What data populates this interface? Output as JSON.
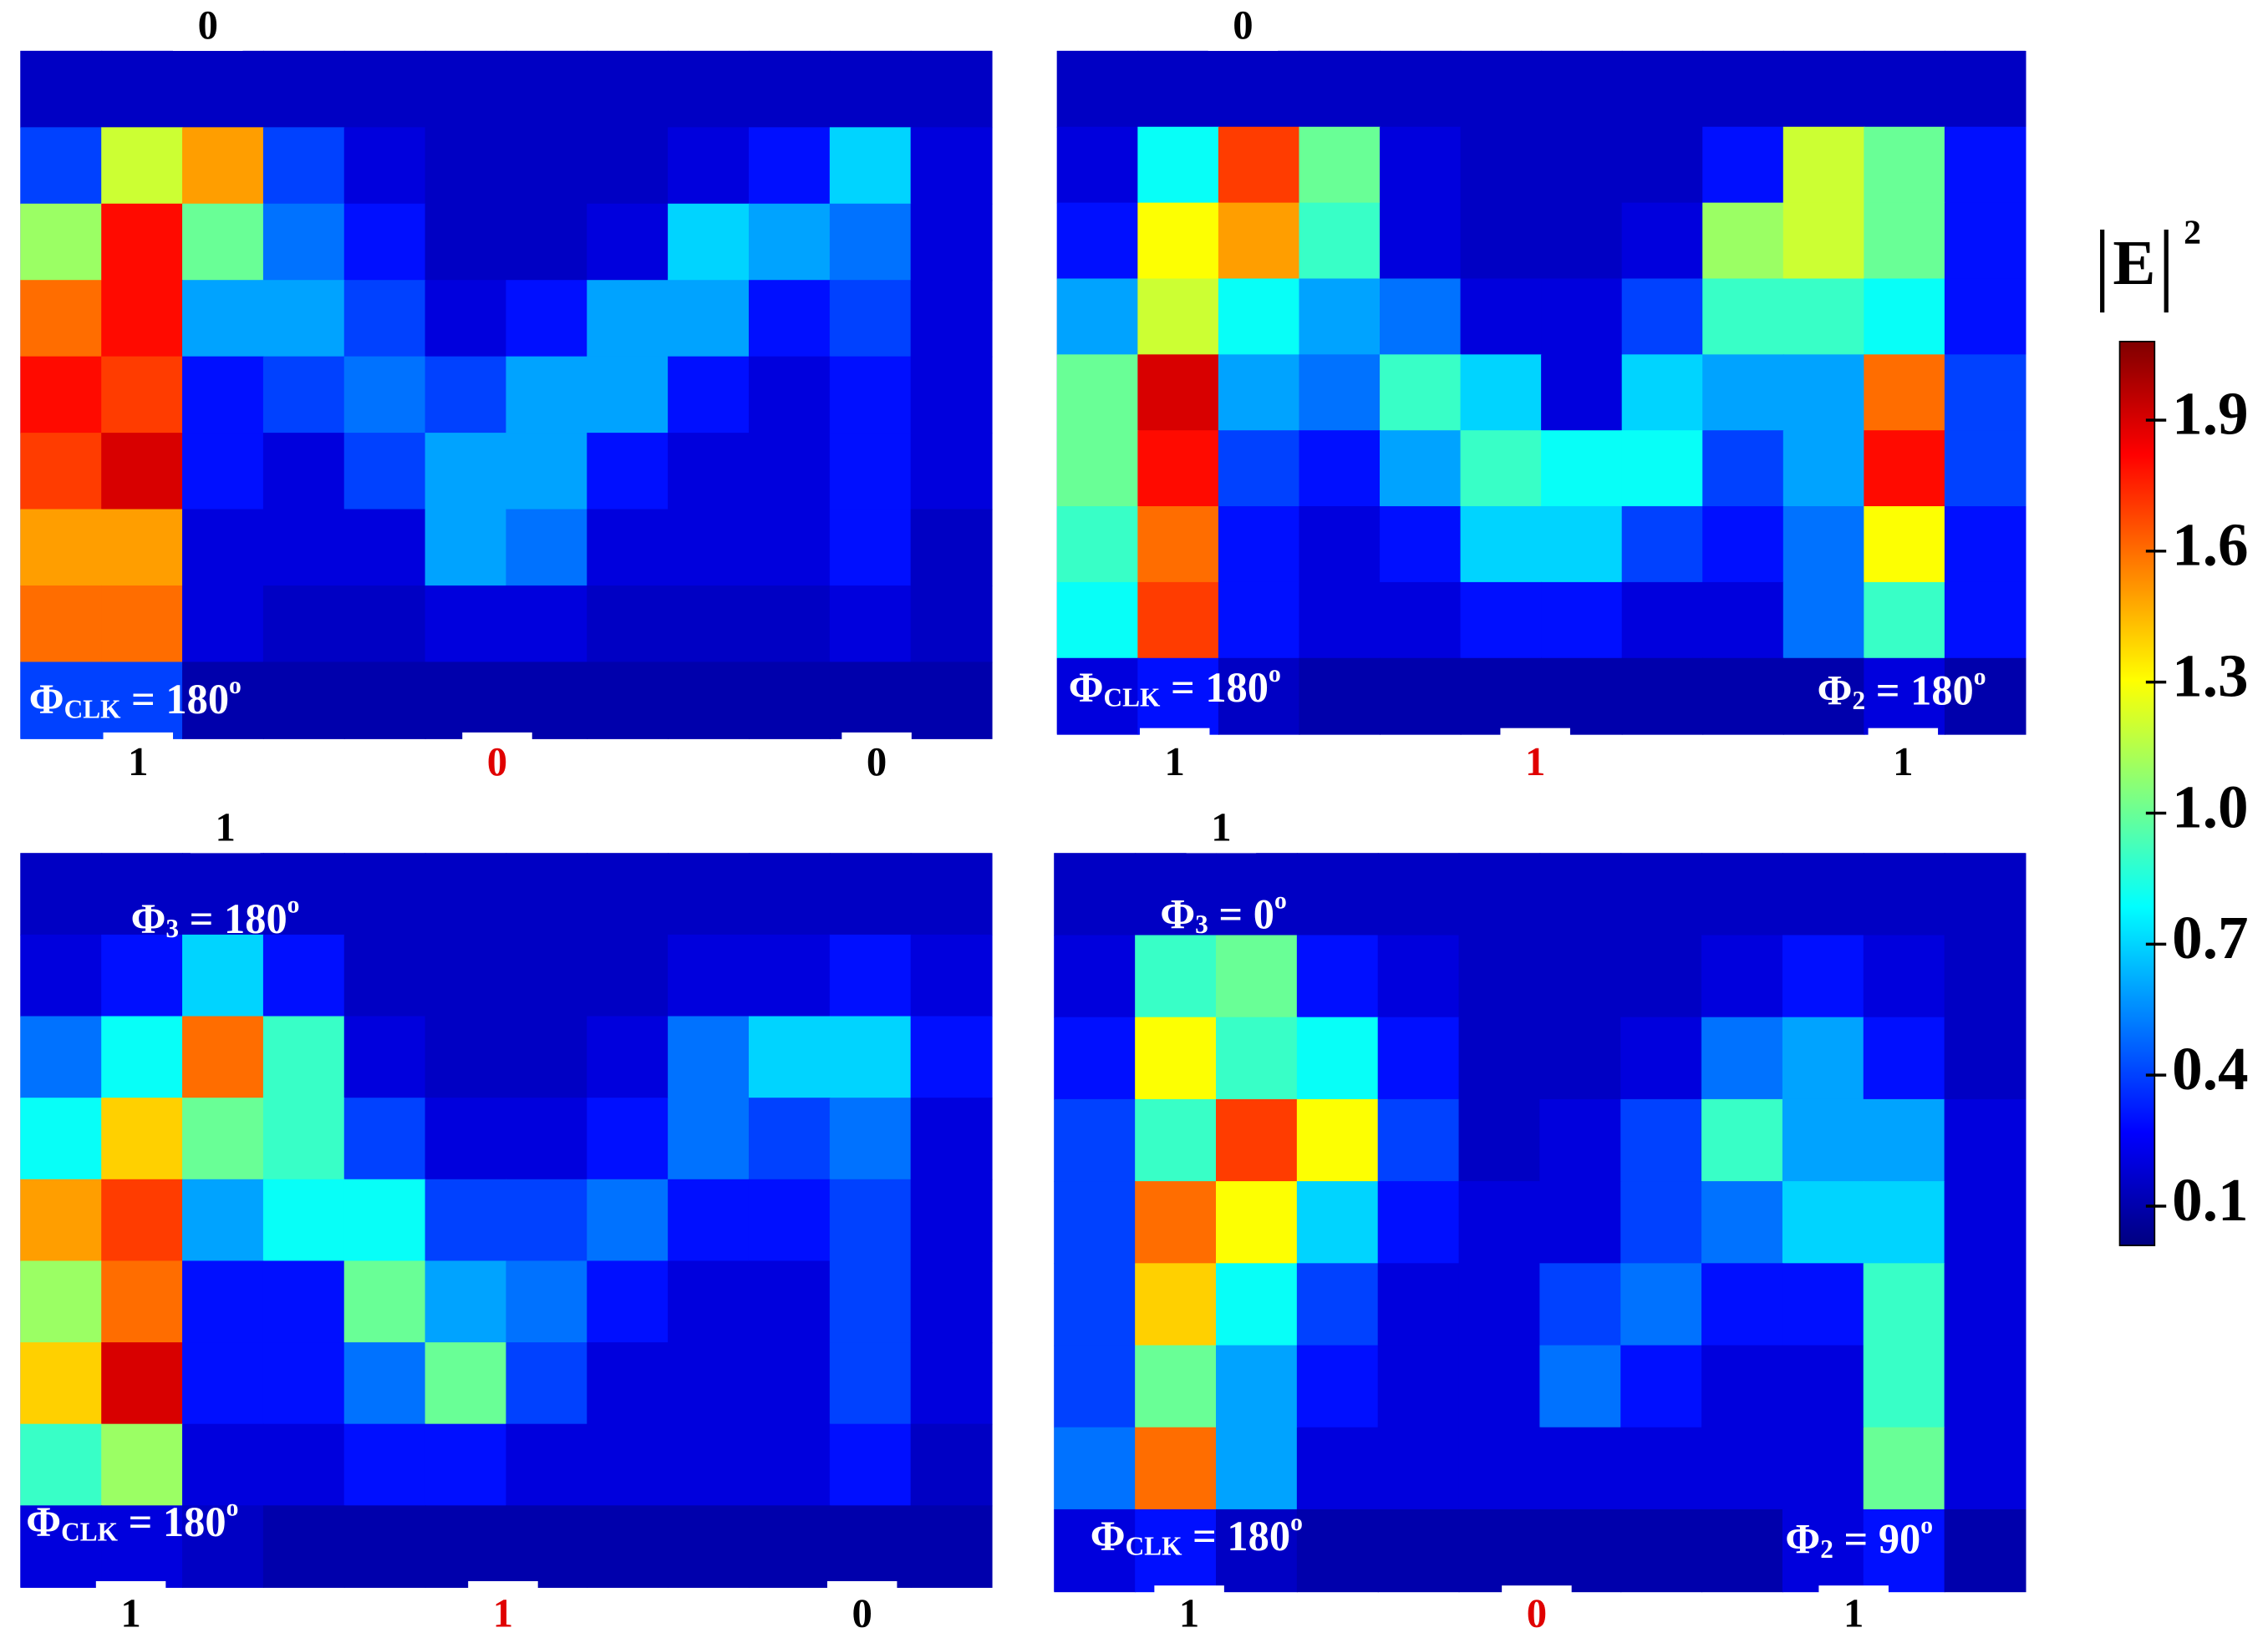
{
  "chart_data": [
    {
      "type": "heatmap",
      "top_labels": [
        "0"
      ],
      "bottom_labels": [
        {
          "text": "1",
          "color": "#000000"
        },
        {
          "text": "0",
          "color": "#e00000"
        },
        {
          "text": "0",
          "color": "#000000"
        }
      ],
      "annotations": [
        {
          "symbol": "Φ",
          "sub": "CLK",
          "text": " = 180",
          "sup": "o"
        }
      ],
      "values": [
        [
          0.15,
          0.15,
          0.15,
          0.15,
          0.15,
          0.15,
          0.15,
          0.15,
          0.15,
          0.15,
          0.15,
          0.15
        ],
        [
          0.4,
          1.2,
          1.5,
          0.4,
          0.2,
          0.15,
          0.15,
          0.15,
          0.2,
          0.3,
          0.7,
          0.2
        ],
        [
          1.1,
          1.8,
          1.0,
          0.5,
          0.3,
          0.15,
          0.15,
          0.2,
          0.7,
          0.6,
          0.5,
          0.2
        ],
        [
          1.6,
          1.8,
          0.6,
          0.6,
          0.4,
          0.2,
          0.3,
          0.6,
          0.6,
          0.3,
          0.4,
          0.2
        ],
        [
          1.8,
          1.7,
          0.3,
          0.4,
          0.5,
          0.4,
          0.6,
          0.6,
          0.3,
          0.2,
          0.3,
          0.2
        ],
        [
          1.7,
          1.9,
          0.3,
          0.2,
          0.4,
          0.6,
          0.6,
          0.3,
          0.2,
          0.2,
          0.3,
          0.2
        ],
        [
          1.5,
          1.5,
          0.2,
          0.2,
          0.2,
          0.6,
          0.5,
          0.2,
          0.2,
          0.2,
          0.3,
          0.15
        ],
        [
          1.6,
          1.6,
          0.2,
          0.15,
          0.15,
          0.2,
          0.2,
          0.15,
          0.15,
          0.15,
          0.2,
          0.15
        ],
        [
          0.4,
          0.4,
          0.1,
          0.1,
          0.1,
          0.1,
          0.1,
          0.1,
          0.1,
          0.1,
          0.1,
          0.1
        ]
      ]
    },
    {
      "type": "heatmap",
      "top_labels": [
        "0"
      ],
      "bottom_labels": [
        {
          "text": "1",
          "color": "#000000"
        },
        {
          "text": "1",
          "color": "#e00000"
        },
        {
          "text": "1",
          "color": "#000000"
        }
      ],
      "annotations": [
        {
          "symbol": "Φ",
          "sub": "CLK",
          "text": " = 180",
          "sup": "o"
        },
        {
          "symbol": "Φ",
          "sub": "2",
          "text": " = 180",
          "sup": "o"
        }
      ],
      "values": [
        [
          0.15,
          0.15,
          0.15,
          0.15,
          0.15,
          0.15,
          0.15,
          0.15,
          0.15,
          0.15,
          0.15,
          0.15
        ],
        [
          0.2,
          0.8,
          1.7,
          1.0,
          0.2,
          0.15,
          0.15,
          0.15,
          0.3,
          1.2,
          1.0,
          0.3
        ],
        [
          0.3,
          1.3,
          1.5,
          0.9,
          0.2,
          0.15,
          0.15,
          0.2,
          1.1,
          1.2,
          1.0,
          0.3
        ],
        [
          0.6,
          1.2,
          0.8,
          0.6,
          0.5,
          0.2,
          0.2,
          0.4,
          0.9,
          0.9,
          0.8,
          0.3
        ],
        [
          1.0,
          1.9,
          0.6,
          0.5,
          0.9,
          0.7,
          0.2,
          0.7,
          0.6,
          0.6,
          1.6,
          0.4
        ],
        [
          1.0,
          1.8,
          0.4,
          0.3,
          0.6,
          0.9,
          0.8,
          0.8,
          0.4,
          0.6,
          1.8,
          0.4
        ],
        [
          0.9,
          1.6,
          0.3,
          0.2,
          0.3,
          0.7,
          0.7,
          0.4,
          0.3,
          0.5,
          1.3,
          0.3
        ],
        [
          0.8,
          1.7,
          0.3,
          0.2,
          0.2,
          0.3,
          0.3,
          0.2,
          0.2,
          0.5,
          0.9,
          0.3
        ],
        [
          0.2,
          0.3,
          0.15,
          0.1,
          0.1,
          0.1,
          0.1,
          0.1,
          0.1,
          0.1,
          0.2,
          0.1
        ]
      ]
    },
    {
      "type": "heatmap",
      "top_labels": [
        "1"
      ],
      "bottom_labels": [
        {
          "text": "1",
          "color": "#000000"
        },
        {
          "text": "1",
          "color": "#e00000"
        },
        {
          "text": "0",
          "color": "#000000"
        }
      ],
      "annotations": [
        {
          "symbol": "Φ",
          "sub": "3",
          "text": " = 180",
          "sup": "o"
        },
        {
          "symbol": "Φ",
          "sub": "CLK",
          "text": " = 180",
          "sup": "o"
        }
      ],
      "values": [
        [
          0.15,
          0.15,
          0.15,
          0.15,
          0.15,
          0.15,
          0.15,
          0.15,
          0.15,
          0.15,
          0.15,
          0.15
        ],
        [
          0.2,
          0.3,
          0.7,
          0.3,
          0.15,
          0.15,
          0.15,
          0.15,
          0.2,
          0.2,
          0.3,
          0.2
        ],
        [
          0.5,
          0.8,
          1.6,
          0.9,
          0.2,
          0.15,
          0.15,
          0.2,
          0.5,
          0.7,
          0.7,
          0.3
        ],
        [
          0.8,
          1.4,
          1.0,
          0.9,
          0.4,
          0.2,
          0.2,
          0.3,
          0.5,
          0.4,
          0.5,
          0.2
        ],
        [
          1.5,
          1.7,
          0.6,
          0.8,
          0.8,
          0.4,
          0.4,
          0.5,
          0.3,
          0.3,
          0.4,
          0.2
        ],
        [
          1.1,
          1.6,
          0.3,
          0.3,
          1.0,
          0.6,
          0.5,
          0.3,
          0.2,
          0.2,
          0.4,
          0.2
        ],
        [
          1.4,
          1.9,
          0.3,
          0.3,
          0.5,
          1.0,
          0.4,
          0.2,
          0.2,
          0.2,
          0.4,
          0.2
        ],
        [
          0.9,
          1.1,
          0.2,
          0.2,
          0.3,
          0.3,
          0.2,
          0.2,
          0.2,
          0.2,
          0.3,
          0.15
        ],
        [
          0.2,
          0.2,
          0.15,
          0.1,
          0.1,
          0.1,
          0.1,
          0.1,
          0.1,
          0.1,
          0.1,
          0.1
        ]
      ]
    },
    {
      "type": "heatmap",
      "top_labels": [
        "1"
      ],
      "bottom_labels": [
        {
          "text": "1",
          "color": "#000000"
        },
        {
          "text": "0",
          "color": "#e00000"
        },
        {
          "text": "1",
          "color": "#000000"
        }
      ],
      "annotations": [
        {
          "symbol": "Φ",
          "sub": "3",
          "text": " = 0",
          "sup": "o"
        },
        {
          "symbol": "Φ",
          "sub": "CLK",
          "text": " = 180",
          "sup": "o"
        },
        {
          "symbol": "Φ",
          "sub": "2",
          "text": " = 90",
          "sup": "o"
        }
      ],
      "values": [
        [
          0.15,
          0.15,
          0.15,
          0.15,
          0.15,
          0.15,
          0.15,
          0.15,
          0.15,
          0.15,
          0.15,
          0.15
        ],
        [
          0.2,
          0.9,
          1.0,
          0.3,
          0.2,
          0.15,
          0.15,
          0.15,
          0.2,
          0.3,
          0.2,
          0.15
        ],
        [
          0.3,
          1.3,
          0.9,
          0.8,
          0.3,
          0.15,
          0.15,
          0.2,
          0.5,
          0.6,
          0.3,
          0.15
        ],
        [
          0.4,
          0.9,
          1.7,
          1.3,
          0.4,
          0.15,
          0.2,
          0.4,
          0.9,
          0.6,
          0.6,
          0.2
        ],
        [
          0.4,
          1.6,
          1.3,
          0.7,
          0.3,
          0.2,
          0.2,
          0.4,
          0.5,
          0.7,
          0.7,
          0.2
        ],
        [
          0.4,
          1.4,
          0.8,
          0.4,
          0.2,
          0.2,
          0.4,
          0.5,
          0.3,
          0.3,
          0.9,
          0.2
        ],
        [
          0.4,
          1.0,
          0.6,
          0.3,
          0.2,
          0.2,
          0.5,
          0.3,
          0.2,
          0.2,
          0.9,
          0.2
        ],
        [
          0.5,
          1.6,
          0.6,
          0.2,
          0.2,
          0.2,
          0.2,
          0.2,
          0.2,
          0.2,
          1.0,
          0.2
        ],
        [
          0.2,
          0.3,
          0.15,
          0.1,
          0.1,
          0.1,
          0.1,
          0.1,
          0.1,
          0.2,
          0.3,
          0.1
        ]
      ]
    }
  ],
  "colorbar": {
    "label": {
      "text": "E",
      "sup": "2"
    },
    "colormap": "jet",
    "clim": [
      0.01,
      2.08
    ],
    "ticks": [
      0.1,
      0.4,
      0.7,
      {
        "value": 1,
        "label": "1.0"
      },
      1.3,
      1.6,
      1.9
    ]
  }
}
